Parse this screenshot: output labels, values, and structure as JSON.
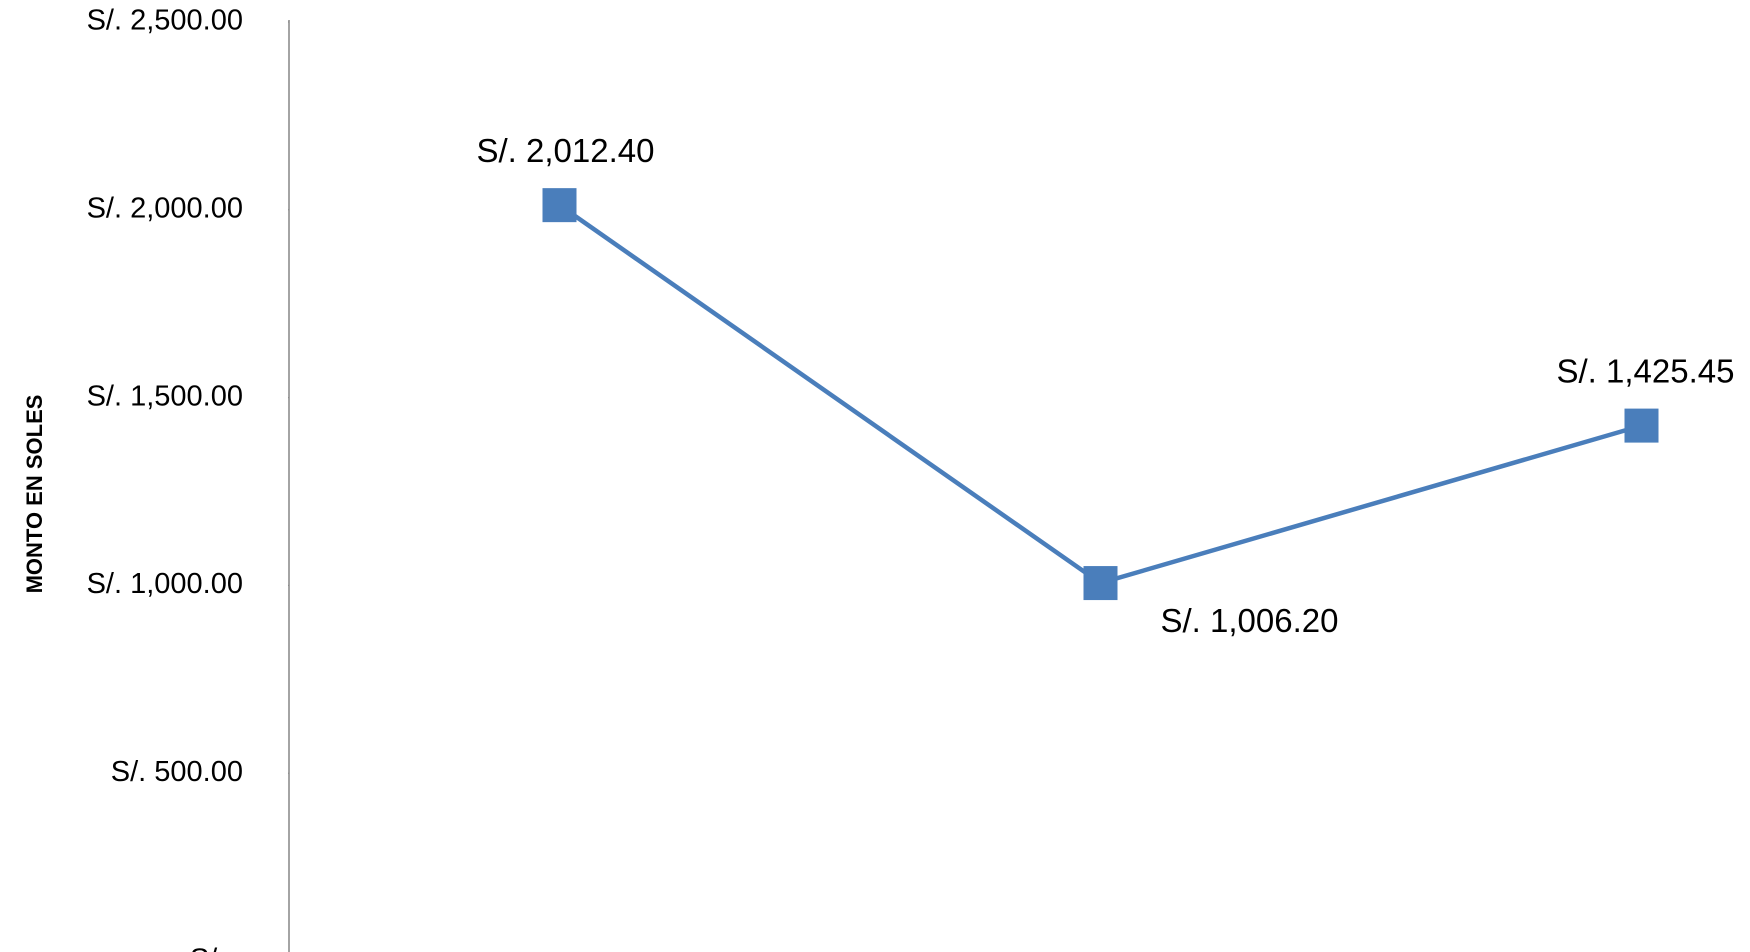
{
  "chart_data": {
    "type": "line",
    "y_label": "MONTO EN SOLES",
    "categories": [
      null,
      null,
      null
    ],
    "series": [
      {
        "name": null,
        "color": "#4a7ebb",
        "values": [
          2012.4,
          1006.2,
          1425.45
        ],
        "value_labels": [
          "S/. 2,012.40",
          "S/. 1,006.20",
          "S/. 1,425.45"
        ]
      }
    ],
    "ylim": [
      0,
      2500
    ],
    "yticks": [
      {
        "value": 0,
        "label": "S/. -"
      },
      {
        "value": 500,
        "label": "S/. 500.00"
      },
      {
        "value": 1000,
        "label": "S/. 1,000.00"
      },
      {
        "value": 1500,
        "label": "S/. 1,500.00"
      },
      {
        "value": 2000,
        "label": "S/. 2,000.00"
      },
      {
        "value": 2500,
        "label": "S/. 2,500.00"
      }
    ],
    "grid": false,
    "marker": "square"
  }
}
